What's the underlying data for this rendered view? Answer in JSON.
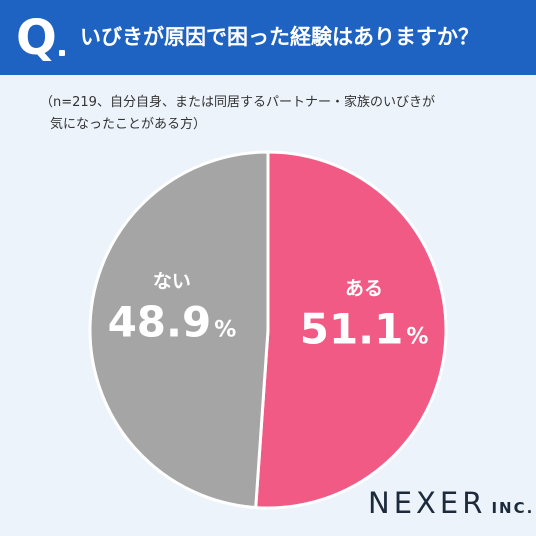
{
  "header": {
    "q_mark": "Q",
    "question": "いびきが原因で困った経験はありますか？"
  },
  "subtitle": {
    "line1": "（n=219、自分自身、または同居するパートナー・家族のいびきが",
    "line2": "気になったことがある方）"
  },
  "chart_data": {
    "type": "pie",
    "categories": [
      "ある",
      "ない"
    ],
    "values": [
      51.1,
      48.9
    ],
    "value_labels": [
      "51.1",
      "48.9"
    ],
    "unit": "%",
    "colors": [
      "#f05a84",
      "#a5a5a5"
    ],
    "start_angle": "top",
    "direction": "clockwise",
    "legend": "none"
  },
  "logo": {
    "main": "NEXER",
    "suffix": "INC."
  }
}
